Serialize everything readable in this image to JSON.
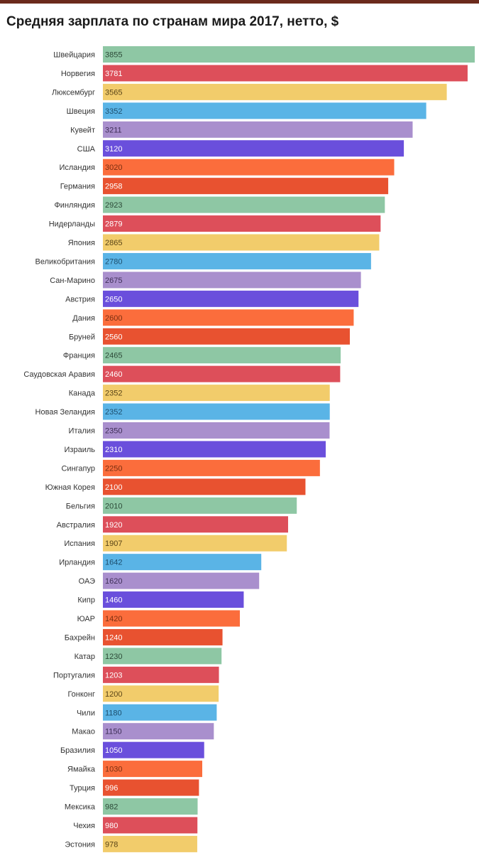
{
  "chart_data": {
    "type": "bar",
    "orientation": "horizontal",
    "title": "Средняя зарплата по странам мира 2017, нетто, $",
    "xlabel": "",
    "ylabel": "",
    "xlim": [
      0,
      3855
    ],
    "grid": false,
    "legend": "none",
    "categories": [
      "Швейцария",
      "Норвегия",
      "Люксембург",
      "Швеция",
      "Кувейт",
      "США",
      "Исландия",
      "Германия",
      "Финляндия",
      "Нидерланды",
      "Япония",
      "Великобритания",
      "Сан-Марино",
      "Австрия",
      "Дания",
      "Бруней",
      "Франция",
      "Саудовская Аравия",
      "Канада",
      "Новая Зеландия",
      "Италия",
      "Израиль",
      "Сингапур",
      "Южная Корея",
      "Бельгия",
      "Австралия",
      "Испания",
      "Ирландия",
      "ОАЭ",
      "Кипр",
      "ЮАР",
      "Бахрейн",
      "Катар",
      "Португалия",
      "Гонконг",
      "Чили",
      "Макао",
      "Бразилия",
      "Ямайка",
      "Турция",
      "Мексика",
      "Чехия",
      "Эстония"
    ],
    "values": [
      3855,
      3781,
      3565,
      3352,
      3211,
      3120,
      3020,
      2958,
      2923,
      2879,
      2865,
      2780,
      2675,
      2650,
      2600,
      2560,
      2465,
      2460,
      2352,
      2352,
      2350,
      2310,
      2250,
      2100,
      2010,
      1920,
      1907,
      1642,
      1620,
      1460,
      1420,
      1240,
      1230,
      1203,
      1200,
      1180,
      1150,
      1050,
      1030,
      996,
      982,
      980,
      978
    ],
    "value_labels": [
      "3855",
      "3781",
      "3565",
      "3352",
      "3211",
      "3120",
      "3020",
      "2958",
      "2923",
      "2879",
      "2865",
      "2780",
      "2675",
      "2650",
      "2600",
      "2560",
      "2465",
      "2460",
      "2352",
      "2352",
      "2350",
      "2310",
      "2250",
      "2100",
      "2010",
      "1920",
      "1907",
      "1642",
      "1620",
      "1460",
      "1420",
      "1240",
      "1230",
      "1203",
      "1200",
      "1180",
      "1150",
      "1050",
      "1030",
      "996",
      "982",
      "980",
      "978"
    ],
    "palette": [
      "#8ec7a4",
      "#dd4f5a",
      "#f2cc6b",
      "#5ab4e6",
      "#a98fcd",
      "#6a4fdc",
      "#fb6d3c",
      "#e85230"
    ],
    "label_colors": [
      "#2d4a38",
      "#ffffff",
      "#5a4518",
      "#1d4f6e",
      "#3e2f57",
      "#ffffff",
      "#7a2f10",
      "#ffffff"
    ]
  }
}
